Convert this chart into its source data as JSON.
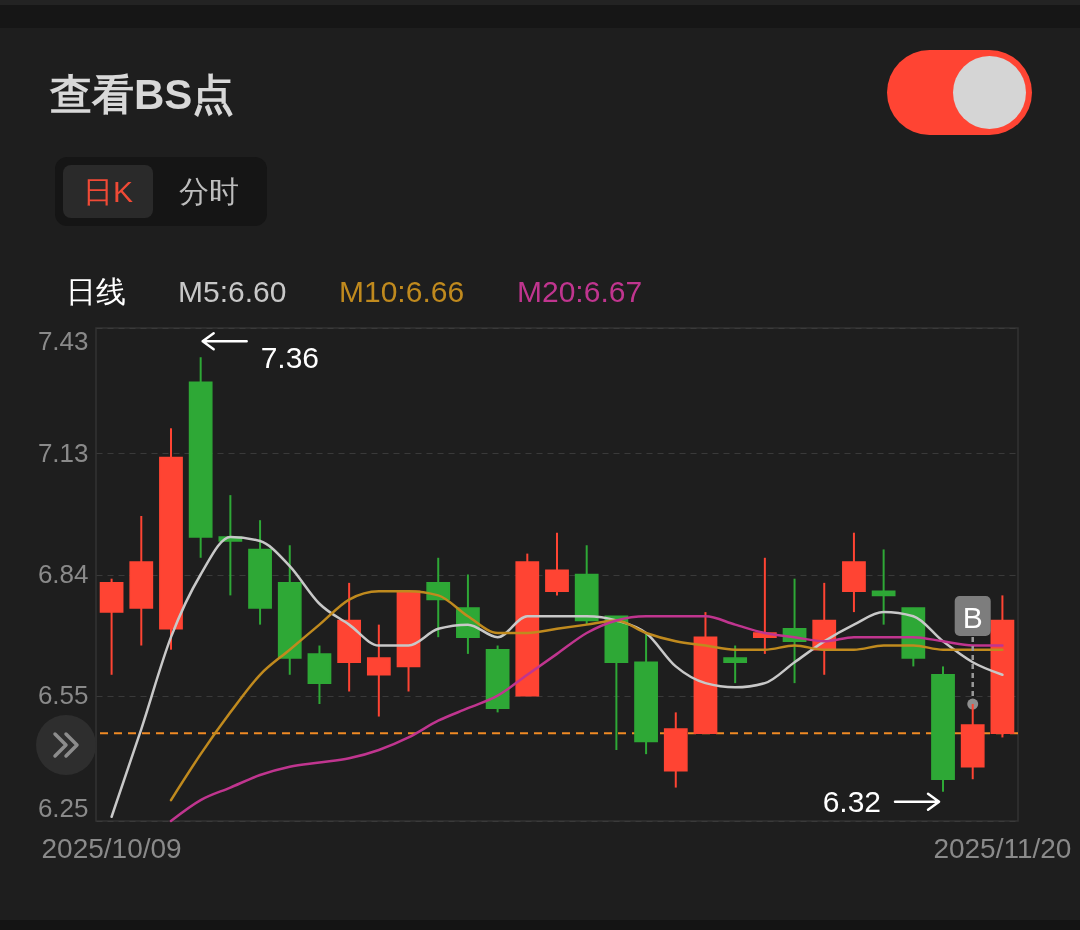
{
  "chart_data": {
    "type": "candlestick",
    "title": "查看BS点",
    "categories": [
      "2025/10/09",
      null,
      null,
      null,
      null,
      null,
      null,
      null,
      null,
      null,
      null,
      null,
      null,
      null,
      null,
      null,
      null,
      null,
      null,
      null,
      null,
      null,
      null,
      null,
      null,
      null,
      null,
      null,
      null,
      null,
      "2025/11/20"
    ],
    "ohlc": [
      [
        6.75,
        6.83,
        6.6,
        6.82
      ],
      [
        6.76,
        6.98,
        6.67,
        6.87
      ],
      [
        6.71,
        7.19,
        6.66,
        7.12
      ],
      [
        7.3,
        7.36,
        6.88,
        6.93
      ],
      [
        6.93,
        7.03,
        6.79,
        6.92
      ],
      [
        6.9,
        6.97,
        6.72,
        6.76
      ],
      [
        6.82,
        6.91,
        6.6,
        6.64
      ],
      [
        6.65,
        6.67,
        6.53,
        6.58
      ],
      [
        6.63,
        6.82,
        6.56,
        6.73
      ],
      [
        6.6,
        6.72,
        6.5,
        6.64
      ],
      [
        6.62,
        6.8,
        6.56,
        6.8
      ],
      [
        6.82,
        6.88,
        6.69,
        6.78
      ],
      [
        6.76,
        6.84,
        6.65,
        6.69
      ],
      [
        6.66,
        6.67,
        6.51,
        6.52
      ],
      [
        6.55,
        6.89,
        6.55,
        6.87
      ],
      [
        6.8,
        6.94,
        6.79,
        6.85
      ],
      [
        6.84,
        6.91,
        6.72,
        6.73
      ],
      [
        6.74,
        6.74,
        6.42,
        6.63
      ],
      [
        6.63,
        6.7,
        6.41,
        6.44
      ],
      [
        6.37,
        6.51,
        6.33,
        6.47
      ],
      [
        6.46,
        6.75,
        6.46,
        6.69
      ],
      [
        6.64,
        6.67,
        6.58,
        6.63
      ],
      [
        6.69,
        6.88,
        6.65,
        6.7
      ],
      [
        6.71,
        6.83,
        6.58,
        6.68
      ],
      [
        6.66,
        6.82,
        6.6,
        6.73
      ],
      [
        6.8,
        6.94,
        6.75,
        6.87
      ],
      [
        6.8,
        6.9,
        6.72,
        6.79
      ],
      [
        6.76,
        6.76,
        6.62,
        6.64
      ],
      [
        6.6,
        6.62,
        6.32,
        6.35
      ],
      [
        6.38,
        6.53,
        6.35,
        6.48
      ],
      [
        6.46,
        6.79,
        6.45,
        6.73
      ]
    ],
    "colors": [
      "#ff4433",
      "#ff4433",
      "#ff4433",
      "#2ea836",
      "#2ea836",
      "#2ea836",
      "#2ea836",
      "#2ea836",
      "#ff4433",
      "#ff4433",
      "#ff4433",
      "#2ea836",
      "#2ea836",
      "#2ea836",
      "#ff4433",
      "#ff4433",
      "#2ea836",
      "#2ea836",
      "#2ea836",
      "#ff4433",
      "#ff4433",
      "#2ea836",
      "#ff4433",
      "#2ea836",
      "#ff4433",
      "#ff4433",
      "#2ea836",
      "#2ea836",
      "#2ea836",
      "#ff4433",
      "#ff4433"
    ],
    "series": [
      {
        "name": "M5:6.60",
        "type": "line",
        "color": "#c8c8c8",
        "values": [
          6.26,
          6.47,
          6.69,
          6.84,
          6.93,
          6.92,
          6.86,
          6.77,
          6.72,
          6.67,
          6.67,
          6.71,
          6.72,
          6.69,
          6.74,
          6.74,
          6.74,
          6.73,
          6.7,
          6.62,
          6.58,
          6.57,
          6.58,
          6.63,
          6.68,
          6.72,
          6.75,
          6.74,
          6.68,
          6.63,
          6.6
        ]
      },
      {
        "name": "M10:6.66",
        "type": "line",
        "color": "#c08a1e",
        "values": [
          null,
          null,
          6.3,
          6.41,
          6.51,
          6.6,
          6.66,
          6.72,
          6.78,
          6.8,
          6.8,
          6.79,
          6.74,
          6.7,
          6.7,
          6.71,
          6.72,
          6.73,
          6.7,
          6.68,
          6.67,
          6.66,
          6.66,
          6.67,
          6.66,
          6.66,
          6.67,
          6.67,
          6.66,
          6.66,
          6.66
        ]
      },
      {
        "name": "M20:6.67",
        "type": "line",
        "color": "#c0358f",
        "values": [
          null,
          null,
          6.25,
          6.3,
          6.33,
          6.36,
          6.38,
          6.39,
          6.4,
          6.42,
          6.45,
          6.49,
          6.52,
          6.55,
          6.6,
          6.65,
          6.7,
          6.73,
          6.74,
          6.74,
          6.74,
          6.72,
          6.7,
          6.69,
          6.68,
          6.69,
          6.69,
          6.69,
          6.68,
          6.67,
          6.67
        ]
      },
      {
        "name": "B",
        "type": "scatter",
        "color": "#8f8f8f",
        "values": [
          null,
          null,
          null,
          null,
          null,
          null,
          null,
          null,
          null,
          null,
          null,
          null,
          null,
          null,
          null,
          null,
          null,
          null,
          null,
          null,
          null,
          null,
          null,
          null,
          null,
          null,
          null,
          null,
          null,
          6.53,
          null
        ]
      }
    ],
    "legend_title": "日线",
    "legend": "top left",
    "ylim": [
      6.25,
      7.43
    ],
    "yticks": [
      6.25,
      6.55,
      6.84,
      7.13,
      7.43
    ],
    "grid": "y",
    "ref_lines": [
      {
        "axis": "y",
        "value": 6.46,
        "color": "#f08a24",
        "line_style": "dashed"
      }
    ],
    "annotations": [
      "日K",
      "分时",
      "7.36",
      "6.32"
    ]
  }
}
